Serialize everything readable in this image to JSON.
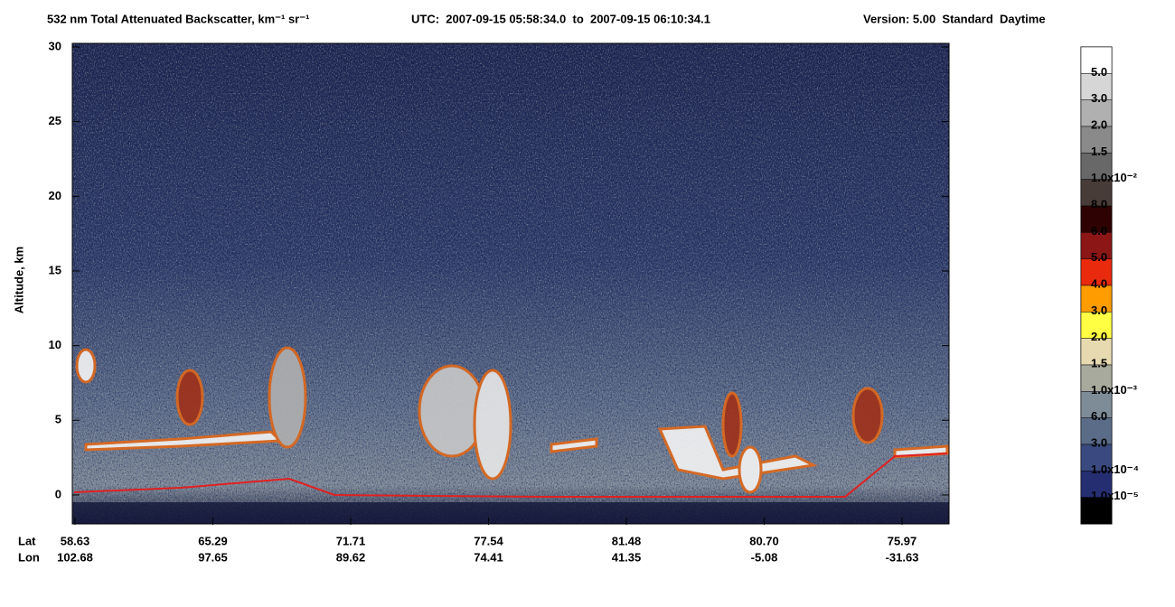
{
  "chart_data": {
    "type": "curtain",
    "title": "532 nm Total Attenuated Backscatter, km⁻¹ sr⁻¹",
    "utc": "UTC:  2007-09-15 05:58:34.0  to  2007-09-15 06:10:34.1",
    "version": "Version: 5.00  Standard  Daytime",
    "y_label": "Altitude, km",
    "ylim": [
      -2,
      30
    ],
    "yticks": [
      0,
      5,
      10,
      15,
      20,
      25,
      30
    ],
    "x_rows": [
      "Lat",
      "Lon"
    ],
    "lat": [
      "58.63",
      "65.29",
      "71.71",
      "77.54",
      "81.48",
      "80.70",
      "75.97"
    ],
    "lon": [
      "102.68",
      "97.65",
      "89.62",
      "74.41",
      "41.35",
      "-5.08",
      "-31.63"
    ],
    "colorbar": {
      "colors": [
        "#ffffff",
        "#d6d6d6",
        "#b0b0b0",
        "#8a8a8a",
        "#686868",
        "#483c38",
        "#2e0202",
        "#8c1616",
        "#ea2a0c",
        "#ff9c00",
        "#ffff44",
        "#e8dab0",
        "#a8aa9e",
        "#7e8c98",
        "#5a6c88",
        "#3a4a80",
        "#262e72",
        "#000000"
      ],
      "labels": [
        "5.0",
        "3.0",
        "2.0",
        "1.5",
        "1.0x10⁻²",
        "8.0",
        "6.0",
        "5.0",
        "4.0",
        "3.0",
        "2.0",
        "1.5",
        "1.0x10⁻³",
        "6.0",
        "3.0",
        "1.0x10⁻⁴",
        "1.0x10⁻⁵"
      ]
    }
  }
}
